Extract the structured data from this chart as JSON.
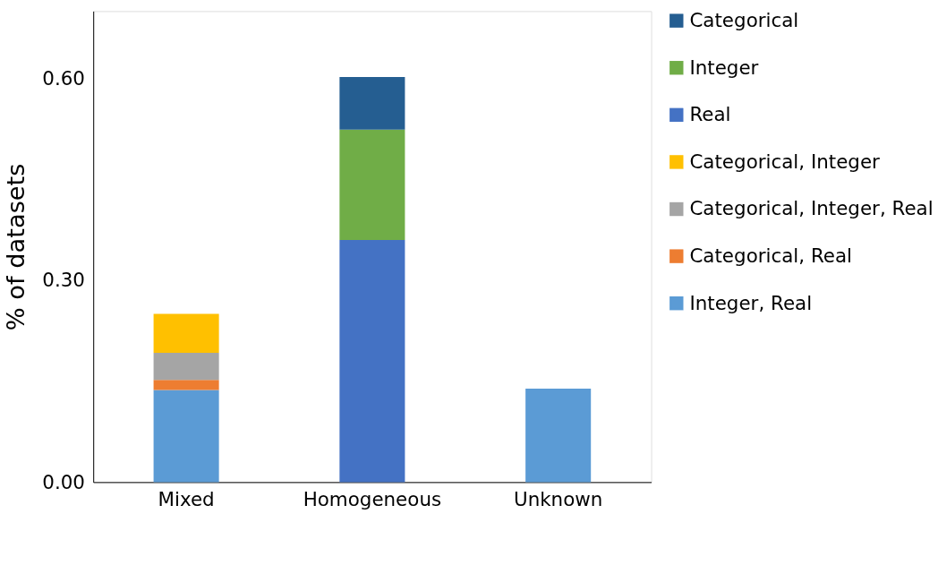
{
  "chart_data": {
    "type": "bar",
    "stacked": true,
    "ylabel": "% of datasets",
    "categories": [
      "Mixed",
      "Homogeneous",
      "Unknown"
    ],
    "series": [
      {
        "name": "Integer, Real",
        "color": "#5b9bd5",
        "values": [
          0.137,
          null,
          0.139
        ]
      },
      {
        "name": "Categorical, Real",
        "color": "#ed7d31",
        "values": [
          0.015,
          null,
          null
        ]
      },
      {
        "name": "Categorical, Integer, Real",
        "color": "#a5a5a5",
        "values": [
          0.04,
          null,
          null
        ]
      },
      {
        "name": "Categorical, Integer",
        "color": "#ffc000",
        "values": [
          0.058,
          null,
          null
        ]
      },
      {
        "name": "Real",
        "color": "#4472c4",
        "values": [
          null,
          0.36,
          null
        ]
      },
      {
        "name": "Integer",
        "color": "#70ad47",
        "values": [
          null,
          0.164,
          null
        ]
      },
      {
        "name": "Categorical",
        "color": "#255e91",
        "values": [
          null,
          0.078,
          null
        ]
      }
    ],
    "ylim": [
      0,
      0.7
    ],
    "yticks": [
      {
        "value": 0,
        "label": "0.00"
      },
      {
        "value": 0.3,
        "label": "0.30"
      },
      {
        "value": 0.6,
        "label": "0.60"
      }
    ],
    "grid": false,
    "legend": "right"
  }
}
